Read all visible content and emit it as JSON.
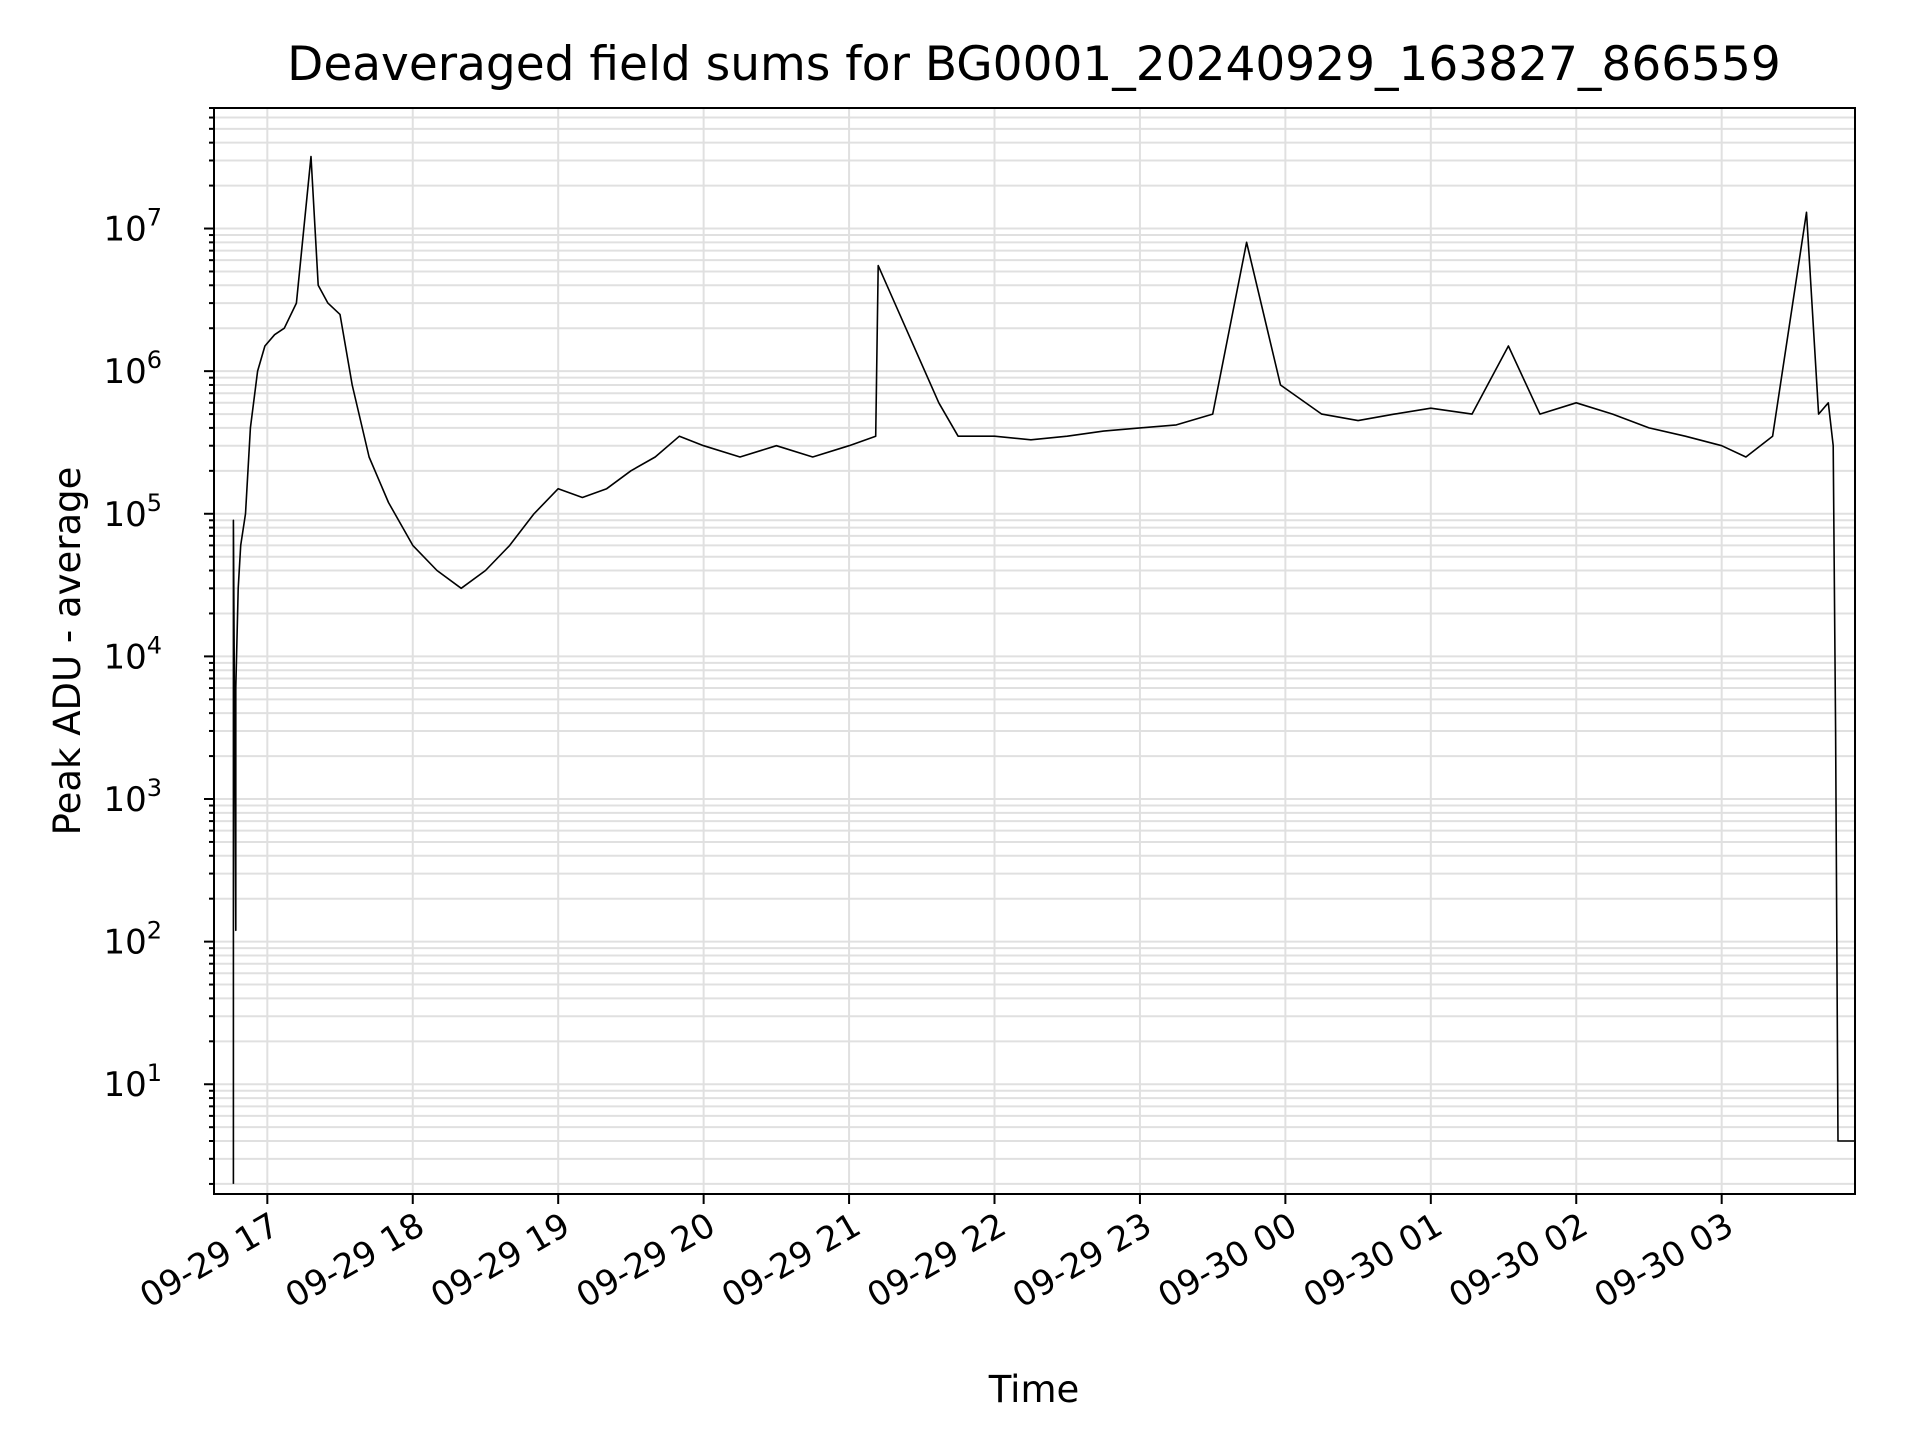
{
  "chart_data": {
    "type": "line",
    "title": "Deaveraged field sums for BG0001_20240929_163827_866559",
    "xlabel": "Time",
    "ylabel": "Peak ADU - average",
    "yscale": "log",
    "ylim": [
      1.7,
      70000000
    ],
    "xlim": [
      "2024-09-29 16:38",
      "2024-09-30 03:55"
    ],
    "grid": true,
    "line_color": "#000000",
    "grid_color": "#e0e0e0",
    "x_ticks": [
      {
        "value": "2024-09-29 17:00",
        "label": "09-29 17"
      },
      {
        "value": "2024-09-29 18:00",
        "label": "09-29 18"
      },
      {
        "value": "2024-09-29 19:00",
        "label": "09-29 19"
      },
      {
        "value": "2024-09-29 20:00",
        "label": "09-29 20"
      },
      {
        "value": "2024-09-29 21:00",
        "label": "09-29 21"
      },
      {
        "value": "2024-09-29 22:00",
        "label": "09-29 22"
      },
      {
        "value": "2024-09-29 23:00",
        "label": "09-29 23"
      },
      {
        "value": "2024-09-30 00:00",
        "label": "09-30 00"
      },
      {
        "value": "2024-09-30 01:00",
        "label": "09-30 01"
      },
      {
        "value": "2024-09-30 02:00",
        "label": "09-30 02"
      },
      {
        "value": "2024-09-30 03:00",
        "label": "09-30 03"
      }
    ],
    "y_ticks": [
      {
        "value": 10,
        "base": "10",
        "exp": "1"
      },
      {
        "value": 100,
        "base": "10",
        "exp": "2"
      },
      {
        "value": 1000,
        "base": "10",
        "exp": "3"
      },
      {
        "value": 10000,
        "base": "10",
        "exp": "4"
      },
      {
        "value": 100000,
        "base": "10",
        "exp": "5"
      },
      {
        "value": 1000000,
        "base": "10",
        "exp": "6"
      },
      {
        "value": 10000000,
        "base": "10",
        "exp": "7"
      }
    ],
    "series": [
      {
        "x": [
          "2024-09-29 16:46",
          "2024-09-29 16:46",
          "2024-09-29 16:47",
          "2024-09-29 16:47",
          "2024-09-29 16:48",
          "2024-09-29 16:49",
          "2024-09-29 16:51",
          "2024-09-29 16:53",
          "2024-09-29 16:56",
          "2024-09-29 16:59",
          "2024-09-29 17:03",
          "2024-09-29 17:07",
          "2024-09-29 17:12",
          "2024-09-29 17:18",
          "2024-09-29 17:21",
          "2024-09-29 17:25",
          "2024-09-29 17:30",
          "2024-09-29 17:35",
          "2024-09-29 17:42",
          "2024-09-29 17:50",
          "2024-09-29 18:00",
          "2024-09-29 18:10",
          "2024-09-29 18:20",
          "2024-09-29 18:30",
          "2024-09-29 18:40",
          "2024-09-29 18:50",
          "2024-09-29 19:00",
          "2024-09-29 19:10",
          "2024-09-29 19:20",
          "2024-09-29 19:30",
          "2024-09-29 19:40",
          "2024-09-29 19:50",
          "2024-09-29 20:00",
          "2024-09-29 20:15",
          "2024-09-29 20:30",
          "2024-09-29 20:45",
          "2024-09-29 21:00",
          "2024-09-29 21:11",
          "2024-09-29 21:12",
          "2024-09-29 21:37",
          "2024-09-29 21:45",
          "2024-09-29 22:00",
          "2024-09-29 22:15",
          "2024-09-29 22:30",
          "2024-09-29 22:45",
          "2024-09-29 23:00",
          "2024-09-29 23:15",
          "2024-09-29 23:30",
          "2024-09-29 23:44",
          "2024-09-29 23:58",
          "2024-09-30 00:15",
          "2024-09-30 00:30",
          "2024-09-30 00:45",
          "2024-09-30 01:00",
          "2024-09-30 01:17",
          "2024-09-30 01:32",
          "2024-09-30 01:45",
          "2024-09-30 02:00",
          "2024-09-30 02:15",
          "2024-09-30 02:30",
          "2024-09-30 02:45",
          "2024-09-30 03:00",
          "2024-09-30 03:10",
          "2024-09-30 03:21",
          "2024-09-30 03:35",
          "2024-09-30 03:40",
          "2024-09-30 03:44",
          "2024-09-30 03:46",
          "2024-09-30 03:47",
          "2024-09-30 03:48",
          "2024-09-30 03:55"
        ],
        "y": [
          2,
          90000,
          120,
          6000,
          30000,
          60000,
          100000,
          400000,
          1000000,
          1500000,
          1800000,
          2000000,
          3000000,
          32000000,
          4000000,
          3000000,
          2500000,
          800000,
          250000,
          120000,
          60000,
          40000,
          30000,
          40000,
          60000,
          100000,
          150000,
          130000,
          150000,
          200000,
          250000,
          350000,
          300000,
          250000,
          300000,
          250000,
          300000,
          350000,
          5500000,
          600000,
          350000,
          350000,
          330000,
          350000,
          380000,
          400000,
          420000,
          500000,
          8000000,
          800000,
          500000,
          450000,
          500000,
          550000,
          500000,
          1500000,
          500000,
          600000,
          500000,
          400000,
          350000,
          300000,
          250000,
          350000,
          13000000,
          500000,
          600000,
          300000,
          3000,
          4,
          4
        ]
      }
    ]
  }
}
